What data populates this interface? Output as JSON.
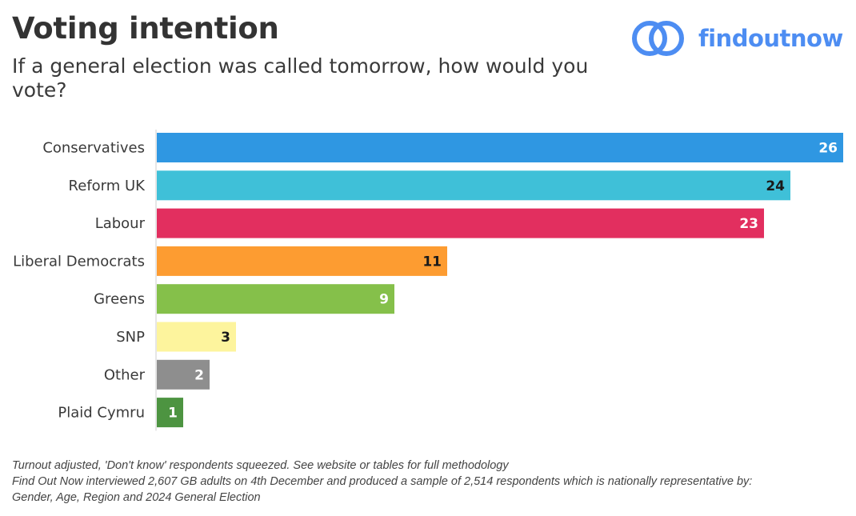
{
  "header": {
    "title": "Voting intention",
    "subtitle": "If a general election was called tomorrow, how would you vote?",
    "brand": "findoutnow"
  },
  "chart_data": {
    "type": "bar",
    "orientation": "horizontal",
    "categories": [
      "Conservatives",
      "Reform UK",
      "Labour",
      "Liberal Democrats",
      "Greens",
      "SNP",
      "Other",
      "Plaid Cymru"
    ],
    "values": [
      26,
      24,
      23,
      11,
      9,
      3,
      2,
      1
    ],
    "colors": [
      "#2f97e2",
      "#3fc0d8",
      "#e22f5f",
      "#fd9c31",
      "#85c04a",
      "#fdf49d",
      "#8e8e8e",
      "#4d9441"
    ],
    "label_colors": [
      "#ffffff",
      "#1a1a1a",
      "#ffffff",
      "#1a1a1a",
      "#ffffff",
      "#1a1a1a",
      "#ffffff",
      "#ffffff"
    ],
    "xlim": [
      0,
      26
    ],
    "title": "Voting intention",
    "xlabel": "",
    "ylabel": ""
  },
  "footer": {
    "line1": "Turnout adjusted, 'Don't know' respondents squeezed. See website or tables for full methodology",
    "line2": "Find Out Now interviewed 2,607 GB adults on 4th December and produced a sample of 2,514 respondents which is nationally representative by:",
    "line3": "Gender, Age, Region and 2024 General Election"
  }
}
